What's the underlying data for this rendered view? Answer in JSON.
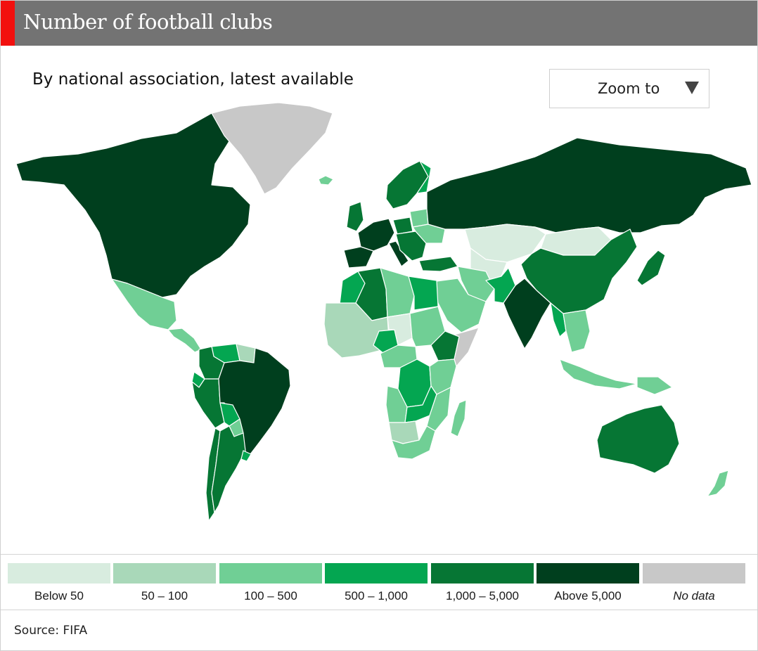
{
  "header": {
    "title": "Number of football clubs",
    "accent_color": "#f2100e",
    "bar_color": "#737373"
  },
  "subtitle": "By national association, latest available",
  "zoom": {
    "label": "Zoom to",
    "icon": "triangle-down-icon"
  },
  "legend": {
    "items": [
      {
        "label": "Below 50",
        "color": "#d8ecdf"
      },
      {
        "label": "50 – 100",
        "color": "#a9d8b9"
      },
      {
        "label": "100 – 500",
        "color": "#70cf95"
      },
      {
        "label": "500 – 1,000",
        "color": "#04a651"
      },
      {
        "label": "1,000 – 5,000",
        "color": "#067634"
      },
      {
        "label": "Above 5,000",
        "color": "#003f1e"
      },
      {
        "label": "No data",
        "color": "#c8c8c8"
      }
    ]
  },
  "source": "Source: FIFA",
  "map": {
    "regions": [
      {
        "name": "north-america",
        "class": "Above 5,000"
      },
      {
        "name": "greenland",
        "class": "No data"
      },
      {
        "name": "iceland",
        "class": "100 – 500"
      },
      {
        "name": "mexico",
        "class": "100 – 500"
      },
      {
        "name": "central-america",
        "class": "100 – 500"
      },
      {
        "name": "venezuela",
        "class": "500 – 1,000"
      },
      {
        "name": "colombia",
        "class": "1,000 – 5,000"
      },
      {
        "name": "guianas",
        "class": "50 – 100"
      },
      {
        "name": "ecuador",
        "class": "500 – 1,000"
      },
      {
        "name": "peru",
        "class": "1,000 – 5,000"
      },
      {
        "name": "brazil",
        "class": "Above 5,000"
      },
      {
        "name": "bolivia",
        "class": "500 – 1,000"
      },
      {
        "name": "paraguay",
        "class": "100 – 500"
      },
      {
        "name": "chile",
        "class": "1,000 – 5,000"
      },
      {
        "name": "argentina",
        "class": "1,000 – 5,000"
      },
      {
        "name": "uruguay",
        "class": "500 – 1,000"
      },
      {
        "name": "scandinavia",
        "class": "1,000 – 5,000"
      },
      {
        "name": "finland",
        "class": "500 – 1,000"
      },
      {
        "name": "uk",
        "class": "1,000 – 5,000"
      },
      {
        "name": "western-europe",
        "class": "Above 5,000"
      },
      {
        "name": "iberia",
        "class": "Above 5,000"
      },
      {
        "name": "italy",
        "class": "Above 5,000"
      },
      {
        "name": "poland",
        "class": "1,000 – 5,000"
      },
      {
        "name": "balkans",
        "class": "1,000 – 5,000"
      },
      {
        "name": "belarus",
        "class": "100 – 500"
      },
      {
        "name": "ukraine",
        "class": "100 – 500"
      },
      {
        "name": "turkey",
        "class": "1,000 – 5,000"
      },
      {
        "name": "russia",
        "class": "Above 5,000"
      },
      {
        "name": "kazakhstan",
        "class": "Below 50"
      },
      {
        "name": "mongolia",
        "class": "Below 50"
      },
      {
        "name": "central-asia",
        "class": "Below 50"
      },
      {
        "name": "china",
        "class": "1,000 – 5,000"
      },
      {
        "name": "japan",
        "class": "1,000 – 5,000"
      },
      {
        "name": "iran",
        "class": "100 – 500"
      },
      {
        "name": "arabia",
        "class": "100 – 500"
      },
      {
        "name": "pakistan",
        "class": "500 – 1,000"
      },
      {
        "name": "india",
        "class": "Above 5,000"
      },
      {
        "name": "myanmar",
        "class": "500 – 1,000"
      },
      {
        "name": "southeast-asia",
        "class": "100 – 500"
      },
      {
        "name": "indonesia",
        "class": "100 – 500"
      },
      {
        "name": "papua",
        "class": "100 – 500"
      },
      {
        "name": "australia",
        "class": "1,000 – 5,000"
      },
      {
        "name": "new-zealand",
        "class": "100 – 500"
      },
      {
        "name": "morocco",
        "class": "500 – 1,000"
      },
      {
        "name": "algeria",
        "class": "1,000 – 5,000"
      },
      {
        "name": "libya",
        "class": "100 – 500"
      },
      {
        "name": "egypt",
        "class": "500 – 1,000"
      },
      {
        "name": "west-africa",
        "class": "50 – 100"
      },
      {
        "name": "nigeria",
        "class": "500 – 1,000"
      },
      {
        "name": "sahel",
        "class": "Below 50"
      },
      {
        "name": "sudan",
        "class": "100 – 500"
      },
      {
        "name": "ethiopia",
        "class": "1,000 – 5,000"
      },
      {
        "name": "somalia",
        "class": "No data"
      },
      {
        "name": "central-africa",
        "class": "100 – 500"
      },
      {
        "name": "drc",
        "class": "500 – 1,000"
      },
      {
        "name": "east-africa",
        "class": "100 – 500"
      },
      {
        "name": "angola",
        "class": "100 – 500"
      },
      {
        "name": "zambia",
        "class": "500 – 1,000"
      },
      {
        "name": "namibia-botswana",
        "class": "50 – 100"
      },
      {
        "name": "mozambique",
        "class": "100 – 500"
      },
      {
        "name": "south-africa",
        "class": "100 – 500"
      },
      {
        "name": "madagascar",
        "class": "100 – 500"
      }
    ]
  }
}
